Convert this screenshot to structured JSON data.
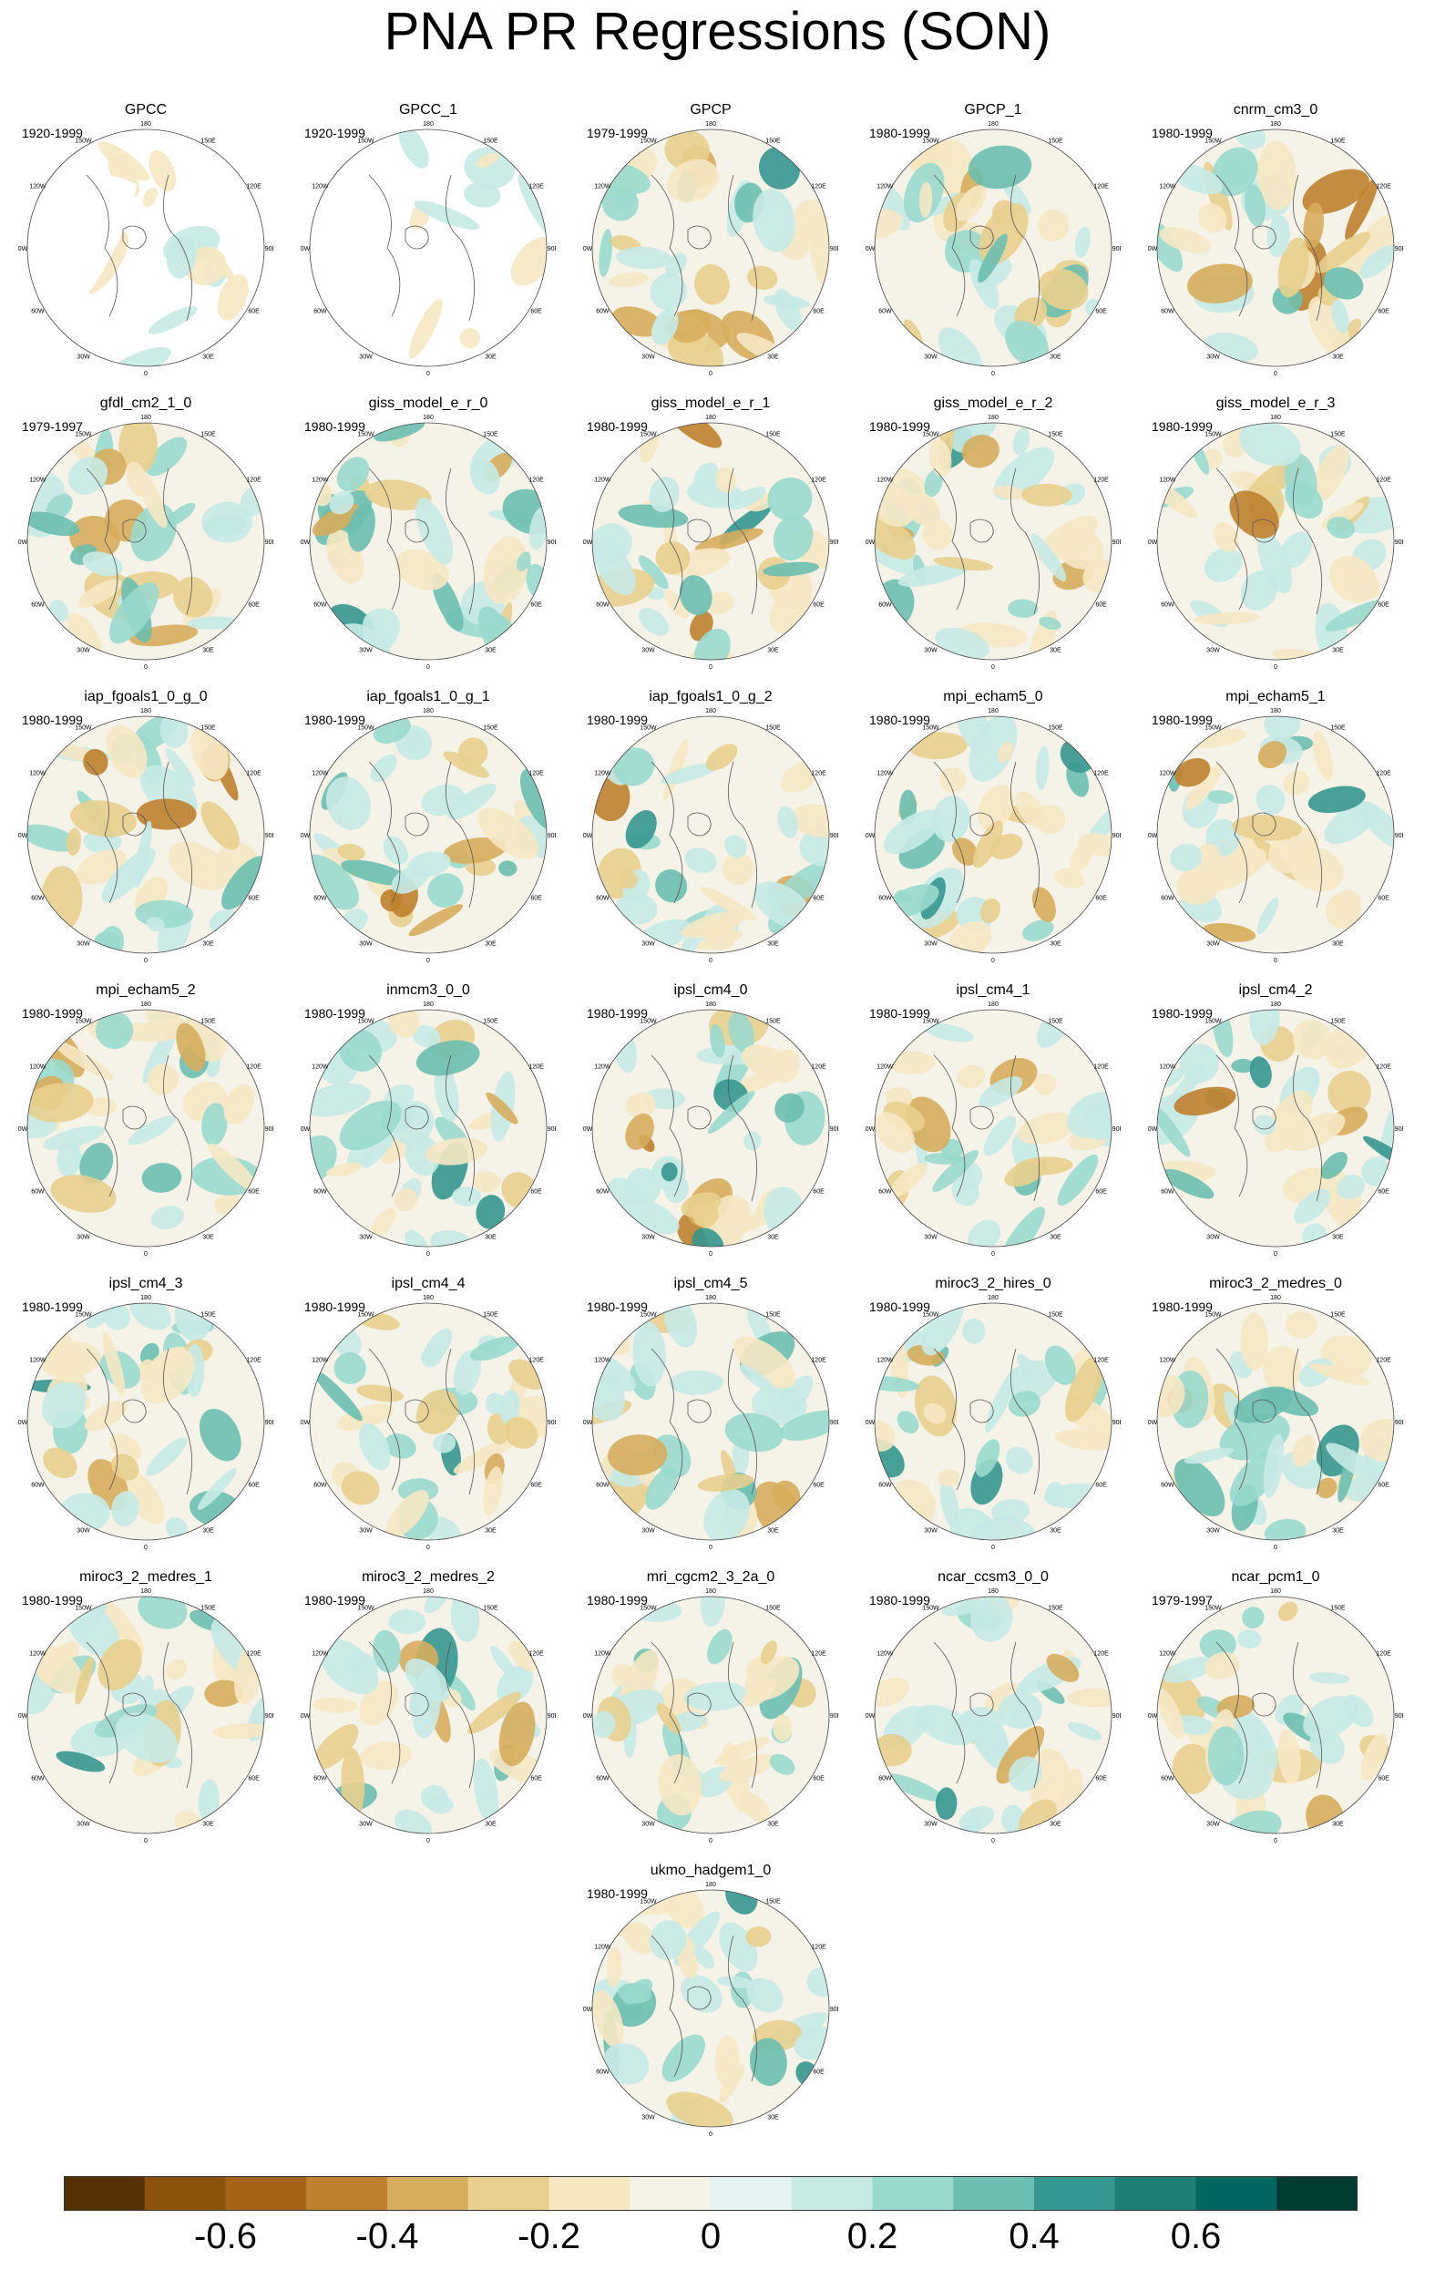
{
  "title": "PNA PR Regressions (SON)",
  "longitude_labels": [
    "180",
    "150E",
    "120E",
    "90E",
    "60E",
    "30E",
    "0",
    "30W",
    "60W",
    "90W",
    "120W",
    "150W"
  ],
  "panels": [
    {
      "name": "GPCC",
      "years": "1920-1999"
    },
    {
      "name": "GPCC_1",
      "years": "1920-1999"
    },
    {
      "name": "GPCP",
      "years": "1979-1999"
    },
    {
      "name": "GPCP_1",
      "years": "1980-1999"
    },
    {
      "name": "cnrm_cm3_0",
      "years": "1980-1999"
    },
    {
      "name": "gfdl_cm2_1_0",
      "years": "1979-1997"
    },
    {
      "name": "giss_model_e_r_0",
      "years": "1980-1999"
    },
    {
      "name": "giss_model_e_r_1",
      "years": "1980-1999"
    },
    {
      "name": "giss_model_e_r_2",
      "years": "1980-1999"
    },
    {
      "name": "giss_model_e_r_3",
      "years": "1980-1999"
    },
    {
      "name": "iap_fgoals1_0_g_0",
      "years": "1980-1999"
    },
    {
      "name": "iap_fgoals1_0_g_1",
      "years": "1980-1999"
    },
    {
      "name": "iap_fgoals1_0_g_2",
      "years": "1980-1999"
    },
    {
      "name": "mpi_echam5_0",
      "years": "1980-1999"
    },
    {
      "name": "mpi_echam5_1",
      "years": "1980-1999"
    },
    {
      "name": "mpi_echam5_2",
      "years": "1980-1999"
    },
    {
      "name": "inmcm3_0_0",
      "years": "1980-1999"
    },
    {
      "name": "ipsl_cm4_0",
      "years": "1980-1999"
    },
    {
      "name": "ipsl_cm4_1",
      "years": "1980-1999"
    },
    {
      "name": "ipsl_cm4_2",
      "years": "1980-1999"
    },
    {
      "name": "ipsl_cm4_3",
      "years": "1980-1999"
    },
    {
      "name": "ipsl_cm4_4",
      "years": "1980-1999"
    },
    {
      "name": "ipsl_cm4_5",
      "years": "1980-1999"
    },
    {
      "name": "miroc3_2_hires_0",
      "years": "1980-1999"
    },
    {
      "name": "miroc3_2_medres_0",
      "years": "1980-1999"
    },
    {
      "name": "miroc3_2_medres_1",
      "years": "1980-1999"
    },
    {
      "name": "miroc3_2_medres_2",
      "years": "1980-1999"
    },
    {
      "name": "mri_cgcm2_3_2a_0",
      "years": "1980-1999"
    },
    {
      "name": "ncar_ccsm3_0_0",
      "years": "1980-1999"
    },
    {
      "name": "ncar_pcm1_0",
      "years": "1979-1997"
    },
    {
      "name": "ukmo_hadgem1_0",
      "years": "1980-1999"
    }
  ],
  "colorbar": {
    "colors": [
      "#543005",
      "#8c510a",
      "#a86318",
      "#bf812d",
      "#d6ad5c",
      "#e8cf8e",
      "#f6e8c3",
      "#f5f2e8",
      "#e6f2f1",
      "#c7eae5",
      "#9ad9cd",
      "#6bbfb0",
      "#35978f",
      "#1f7f72",
      "#01665e",
      "#003c30"
    ],
    "labels": [
      "-0.6",
      "-0.4",
      "-0.2",
      "0",
      "0.2",
      "0.4",
      "0.6"
    ]
  }
}
